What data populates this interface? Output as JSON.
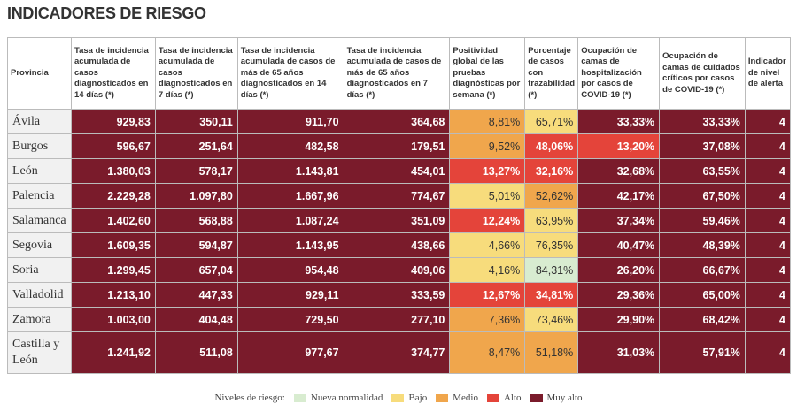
{
  "header": {
    "title": "INDICADORES DE RIESGO"
  },
  "table": {
    "columns": [
      "Provincia",
      "Tasa de incidencia acumulada de casos diagnosticados en 14 días (*)",
      "Tasa de incidencia acumulada de casos diagnosticados en 7 días (*)",
      "Tasa de incidencia acumulada de casos de más de 65 años diagnosticados en 14 días (*)",
      "Tasa de incidencia acumulada de casos de más de 65 años diagnosticados en 7 días (*)",
      "Positividad global de las pruebas diagnósticas por semana (*)",
      "Porcentaje de casos con trazabilidad (*)",
      "Ocupación de camas de hospitalización por casos de COVID-19 (*)",
      "Ocupación de camas de cuidados críticos por casos de COVID-19 (*)",
      "Indicador de nivel de alerta"
    ],
    "rows": [
      {
        "cells": [
          "Ávila",
          "929,83",
          "350,11",
          "911,70",
          "364,68",
          "8,81%",
          "65,71%",
          "33,33%",
          "33,33%",
          "4"
        ],
        "risk": [
          4,
          4,
          4,
          4,
          2,
          1,
          4,
          4,
          4
        ]
      },
      {
        "cells": [
          "Burgos",
          "596,67",
          "251,64",
          "482,58",
          "179,51",
          "9,52%",
          "48,06%",
          "13,20%",
          "37,08%",
          "4"
        ],
        "risk": [
          4,
          4,
          4,
          4,
          2,
          3,
          3,
          4,
          4
        ]
      },
      {
        "cells": [
          "León",
          "1.380,03",
          "578,17",
          "1.143,81",
          "454,01",
          "13,27%",
          "32,16%",
          "32,68%",
          "63,55%",
          "4"
        ],
        "risk": [
          4,
          4,
          4,
          4,
          3,
          3,
          4,
          4,
          4
        ]
      },
      {
        "cells": [
          "Palencia",
          "2.229,28",
          "1.097,80",
          "1.667,96",
          "774,67",
          "5,01%",
          "52,62%",
          "42,17%",
          "67,50%",
          "4"
        ],
        "risk": [
          4,
          4,
          4,
          4,
          1,
          2,
          4,
          4,
          4
        ]
      },
      {
        "cells": [
          "Salamanca",
          "1.402,60",
          "568,88",
          "1.087,24",
          "351,09",
          "12,24%",
          "63,95%",
          "37,34%",
          "59,46%",
          "4"
        ],
        "risk": [
          4,
          4,
          4,
          4,
          3,
          1,
          4,
          4,
          4
        ]
      },
      {
        "cells": [
          "Segovia",
          "1.609,35",
          "594,87",
          "1.143,95",
          "438,66",
          "4,66%",
          "76,35%",
          "40,47%",
          "48,39%",
          "4"
        ],
        "risk": [
          4,
          4,
          4,
          4,
          1,
          1,
          4,
          4,
          4
        ]
      },
      {
        "cells": [
          "Soria",
          "1.299,45",
          "657,04",
          "954,48",
          "409,06",
          "4,16%",
          "84,31%",
          "26,20%",
          "66,67%",
          "4"
        ],
        "risk": [
          4,
          4,
          4,
          4,
          1,
          0,
          4,
          4,
          4
        ]
      },
      {
        "cells": [
          "Valladolid",
          "1.213,10",
          "447,33",
          "929,11",
          "333,59",
          "12,67%",
          "34,81%",
          "29,36%",
          "65,00%",
          "4"
        ],
        "risk": [
          4,
          4,
          4,
          4,
          3,
          3,
          4,
          4,
          4
        ]
      },
      {
        "cells": [
          "Zamora",
          "1.003,00",
          "404,48",
          "729,50",
          "277,10",
          "7,36%",
          "73,46%",
          "29,90%",
          "68,42%",
          "4"
        ],
        "risk": [
          4,
          4,
          4,
          4,
          2,
          1,
          4,
          4,
          4
        ]
      },
      {
        "cells": [
          "Castilla y León",
          "1.241,92",
          "511,08",
          "977,67",
          "374,77",
          "8,47%",
          "51,18%",
          "31,03%",
          "57,91%",
          "4"
        ],
        "risk": [
          4,
          4,
          4,
          4,
          2,
          2,
          4,
          4,
          4
        ]
      }
    ]
  },
  "legend": {
    "title": "Niveles de riesgo:",
    "items": [
      {
        "label": "Nueva normalidad",
        "color": "#d8ecd0"
      },
      {
        "label": "Bajo",
        "color": "#f7dc7c"
      },
      {
        "label": "Medio",
        "color": "#f0a64c"
      },
      {
        "label": "Alto",
        "color": "#e4443a"
      },
      {
        "label": "Muy alto",
        "color": "#7a1b2b"
      }
    ]
  }
}
